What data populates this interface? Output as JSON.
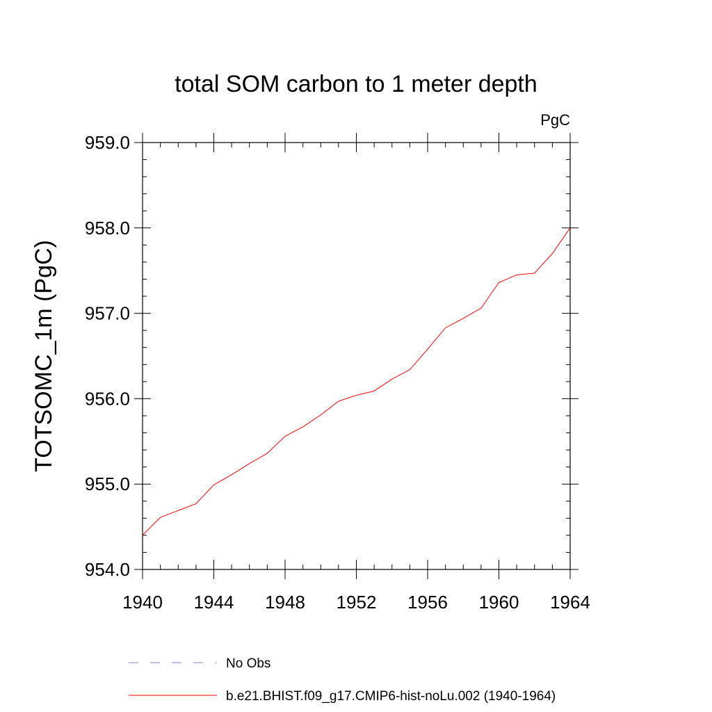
{
  "chart_data": {
    "type": "line",
    "title": "total SOM carbon to 1 meter depth",
    "units_label": "PgC",
    "ylabel": "TOTSOMC_1m  (PgC)",
    "xlabel": "",
    "xlim": [
      1940,
      1964
    ],
    "ylim": [
      954.0,
      959.0
    ],
    "x_ticks": [
      "1940",
      "1944",
      "1948",
      "1952",
      "1956",
      "1960",
      "1964"
    ],
    "y_ticks": [
      "954.0",
      "955.0",
      "956.0",
      "957.0",
      "958.0",
      "959.0"
    ],
    "x": [
      1940,
      1941,
      1942,
      1943,
      1944,
      1945,
      1946,
      1947,
      1948,
      1949,
      1950,
      1951,
      1952,
      1953,
      1954,
      1955,
      1956,
      1957,
      1958,
      1959,
      1960,
      1961,
      1962,
      1963,
      1964
    ],
    "series": [
      {
        "name": "b.e21.BHIST.f09_g17.CMIP6-hist-noLu.002 (1940-1964)",
        "color": "#ff0000",
        "style": "solid",
        "values": [
          954.4,
          954.61,
          954.69,
          954.77,
          954.99,
          955.11,
          955.24,
          955.36,
          955.56,
          955.67,
          955.81,
          955.97,
          956.04,
          956.09,
          956.23,
          956.34,
          956.58,
          956.83,
          956.94,
          957.06,
          957.36,
          957.45,
          957.47,
          957.7,
          958.0
        ]
      }
    ],
    "legend": [
      {
        "label": "No Obs",
        "color": "#8080c0",
        "style": "dashed"
      },
      {
        "label": "b.e21.BHIST.f09_g17.CMIP6-hist-noLu.002 (1940-1964)",
        "color": "#ff0000",
        "style": "solid"
      }
    ],
    "legend_position": "bottom",
    "grid": false
  }
}
